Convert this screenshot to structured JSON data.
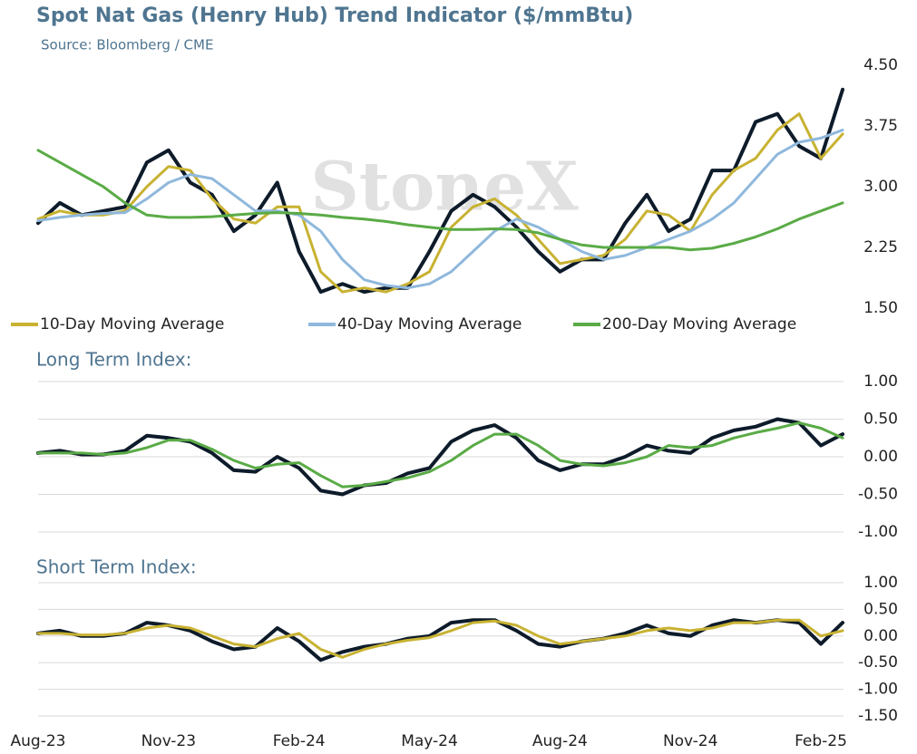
{
  "chart_data": [
    {
      "type": "line",
      "title": "Spot Nat Gas (Henry Hub) Trend Indicator ($/mmBtu)",
      "subtitle": "Source: Bloomberg / CME",
      "watermark": "StoneX",
      "ylim": [
        1.5,
        4.5
      ],
      "yticks": [
        {
          "value": 1.5,
          "label": "1.50"
        },
        {
          "value": 2.25,
          "label": "2.25"
        },
        {
          "value": 3,
          "label": "3.00"
        },
        {
          "value": 3.75,
          "label": "3.75"
        },
        {
          "value": 4.5,
          "label": "4.50"
        }
      ],
      "grid": false,
      "legend": "bottom",
      "series": [
        {
          "color": "#0d1b2a",
          "values": [
            2.55,
            2.8,
            2.65,
            2.7,
            2.75,
            3.3,
            3.45,
            3.05,
            2.9,
            2.45,
            2.65,
            3.05,
            2.2,
            1.7,
            1.8,
            1.7,
            1.75,
            1.75,
            2.2,
            2.7,
            2.9,
            2.75,
            2.5,
            2.2,
            1.95,
            2.1,
            2.1,
            2.55,
            2.9,
            2.45,
            2.6,
            3.2,
            3.2,
            3.8,
            3.9,
            3.5,
            3.35,
            4.2
          ]
        },
        {
          "name": "10-Day Moving Average",
          "color": "#c8b232",
          "values": [
            2.6,
            2.7,
            2.65,
            2.65,
            2.7,
            3.0,
            3.25,
            3.2,
            2.85,
            2.6,
            2.55,
            2.75,
            2.75,
            1.95,
            1.7,
            1.75,
            1.7,
            1.8,
            1.95,
            2.5,
            2.75,
            2.85,
            2.65,
            2.35,
            2.05,
            2.1,
            2.15,
            2.35,
            2.7,
            2.65,
            2.45,
            2.9,
            3.2,
            3.35,
            3.7,
            3.9,
            3.35,
            3.65
          ]
        },
        {
          "name": "40-Day Moving Average",
          "color": "#8fb8dc",
          "values": [
            2.58,
            2.62,
            2.65,
            2.67,
            2.68,
            2.85,
            3.05,
            3.15,
            3.1,
            2.9,
            2.7,
            2.7,
            2.65,
            2.45,
            2.1,
            1.85,
            1.78,
            1.75,
            1.8,
            1.95,
            2.2,
            2.45,
            2.6,
            2.5,
            2.35,
            2.2,
            2.1,
            2.15,
            2.25,
            2.35,
            2.45,
            2.6,
            2.8,
            3.1,
            3.4,
            3.55,
            3.6,
            3.7
          ]
        },
        {
          "name": "200-Day Moving Average",
          "color": "#5aab46",
          "values": [
            3.45,
            3.3,
            3.15,
            3.0,
            2.8,
            2.65,
            2.62,
            2.62,
            2.63,
            2.65,
            2.67,
            2.68,
            2.67,
            2.65,
            2.62,
            2.6,
            2.57,
            2.53,
            2.5,
            2.47,
            2.47,
            2.48,
            2.47,
            2.43,
            2.35,
            2.28,
            2.25,
            2.25,
            2.25,
            2.25,
            2.22,
            2.24,
            2.3,
            2.38,
            2.48,
            2.6,
            2.7,
            2.8
          ]
        }
      ]
    },
    {
      "type": "line",
      "title": "Long Term Index:",
      "ylim": [
        -1,
        1
      ],
      "yticks": [
        {
          "value": -1,
          "label": "-1.00"
        },
        {
          "value": -0.5,
          "label": "-0.50"
        },
        {
          "value": 0,
          "label": "0.00"
        },
        {
          "value": 0.5,
          "label": "0.50"
        },
        {
          "value": 1,
          "label": "1.00"
        }
      ],
      "grid": true,
      "series": [
        {
          "color": "#0d1b2a",
          "values": [
            0.05,
            0.08,
            0.03,
            0.03,
            0.08,
            0.28,
            0.25,
            0.2,
            0.05,
            -0.18,
            -0.2,
            0.0,
            -0.15,
            -0.45,
            -0.5,
            -0.38,
            -0.35,
            -0.22,
            -0.15,
            0.2,
            0.35,
            0.42,
            0.25,
            -0.05,
            -0.18,
            -0.1,
            -0.1,
            0.0,
            0.15,
            0.08,
            0.05,
            0.25,
            0.35,
            0.4,
            0.5,
            0.45,
            0.15,
            0.3
          ]
        },
        {
          "color": "#5aab46",
          "values": [
            0.05,
            0.05,
            0.05,
            0.03,
            0.05,
            0.12,
            0.22,
            0.22,
            0.1,
            -0.05,
            -0.15,
            -0.1,
            -0.08,
            -0.25,
            -0.4,
            -0.38,
            -0.33,
            -0.28,
            -0.2,
            -0.05,
            0.15,
            0.3,
            0.3,
            0.15,
            -0.05,
            -0.1,
            -0.12,
            -0.08,
            0.0,
            0.15,
            0.12,
            0.15,
            0.25,
            0.32,
            0.38,
            0.45,
            0.38,
            0.25
          ]
        }
      ]
    },
    {
      "type": "line",
      "title": "Short Term Index:",
      "ylim": [
        -1.5,
        1
      ],
      "yticks": [
        {
          "value": -1.5,
          "label": "-1.50"
        },
        {
          "value": -1,
          "label": "-1.00"
        },
        {
          "value": -0.5,
          "label": "-0.50"
        },
        {
          "value": 0,
          "label": "0.00"
        },
        {
          "value": 0.5,
          "label": "0.50"
        },
        {
          "value": 1,
          "label": "1.00"
        }
      ],
      "grid": true,
      "categories": [
        "Aug-23",
        null,
        null,
        null,
        null,
        null,
        "Nov-23",
        null,
        null,
        null,
        null,
        null,
        "Feb-24",
        null,
        null,
        null,
        null,
        null,
        "May-24",
        null,
        null,
        null,
        null,
        null,
        "Aug-24",
        null,
        null,
        null,
        null,
        null,
        "Nov-24",
        null,
        null,
        null,
        null,
        null,
        "Feb-25",
        null
      ],
      "series": [
        {
          "color": "#0d1b2a",
          "values": [
            0.05,
            0.1,
            0.0,
            0.0,
            0.05,
            0.25,
            0.2,
            0.1,
            -0.1,
            -0.25,
            -0.2,
            0.15,
            -0.1,
            -0.45,
            -0.3,
            -0.2,
            -0.15,
            -0.05,
            0.0,
            0.25,
            0.3,
            0.3,
            0.1,
            -0.15,
            -0.2,
            -0.1,
            -0.05,
            0.05,
            0.2,
            0.05,
            0.0,
            0.2,
            0.3,
            0.25,
            0.3,
            0.25,
            -0.15,
            0.25
          ]
        },
        {
          "color": "#c8b232",
          "values": [
            0.05,
            0.05,
            0.02,
            0.02,
            0.05,
            0.15,
            0.2,
            0.15,
            0.0,
            -0.15,
            -0.2,
            -0.05,
            0.05,
            -0.25,
            -0.4,
            -0.25,
            -0.15,
            -0.08,
            -0.03,
            0.1,
            0.25,
            0.28,
            0.2,
            0.0,
            -0.15,
            -0.1,
            -0.05,
            0.0,
            0.1,
            0.15,
            0.1,
            0.15,
            0.25,
            0.25,
            0.3,
            0.3,
            0.0,
            0.1
          ]
        }
      ]
    }
  ]
}
